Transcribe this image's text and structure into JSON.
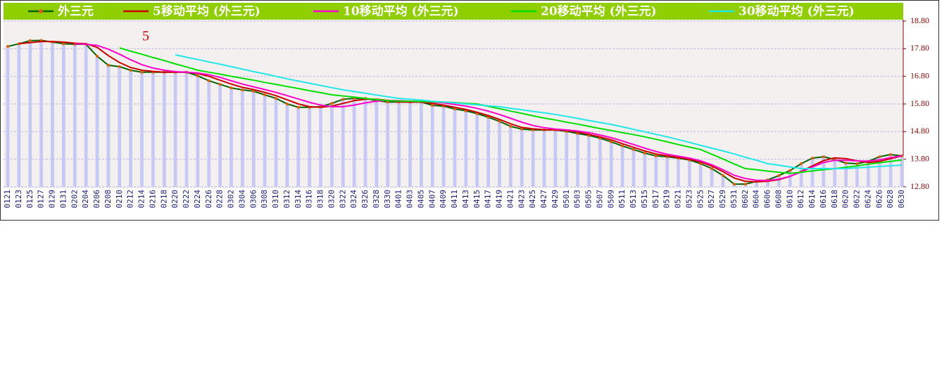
{
  "chart_data": {
    "type": "line",
    "annotation": "5",
    "categories": [
      "0121",
      "0123",
      "0125",
      "0127",
      "0129",
      "0131",
      "0202",
      "0204",
      "0206",
      "0208",
      "0210",
      "0212",
      "0214",
      "0216",
      "0218",
      "0220",
      "0222",
      "0224",
      "0226",
      "0228",
      "0302",
      "0304",
      "0306",
      "0308",
      "0310",
      "0312",
      "0314",
      "0316",
      "0318",
      "0320",
      "0322",
      "0324",
      "0326",
      "0328",
      "0330",
      "0401",
      "0403",
      "0405",
      "0407",
      "0409",
      "0411",
      "0413",
      "0415",
      "0417",
      "0419",
      "0421",
      "0423",
      "0425",
      "0427",
      "0429",
      "0501",
      "0503",
      "0505",
      "0507",
      "0509",
      "0511",
      "0513",
      "0515",
      "0517",
      "0519",
      "0521",
      "0523",
      "0525",
      "0527",
      "0529",
      "0531",
      "0602",
      "0604",
      "0606",
      "0608",
      "0610",
      "0612",
      "0614",
      "0616",
      "0618",
      "0620",
      "0622",
      "0624",
      "0626",
      "0628",
      "0630"
    ],
    "series": [
      {
        "name": "外三元",
        "color": "#006400",
        "values": [
          17.88,
          17.98,
          18.09,
          18.1,
          18.04,
          17.98,
          17.96,
          17.96,
          17.53,
          17.2,
          17.15,
          17.02,
          16.95,
          16.95,
          16.95,
          16.95,
          16.95,
          16.82,
          16.64,
          16.51,
          16.38,
          16.31,
          16.26,
          16.13,
          16.0,
          15.8,
          15.68,
          15.68,
          15.7,
          15.82,
          15.97,
          16.0,
          16.0,
          15.92,
          15.87,
          15.87,
          15.87,
          15.87,
          15.75,
          15.72,
          15.62,
          15.55,
          15.45,
          15.32,
          15.17,
          14.99,
          14.89,
          14.86,
          14.86,
          14.86,
          14.81,
          14.73,
          14.66,
          14.56,
          14.43,
          14.28,
          14.15,
          14.02,
          13.92,
          13.89,
          13.84,
          13.77,
          13.64,
          13.46,
          13.21,
          12.9,
          12.9,
          13.0,
          13.05,
          13.21,
          13.39,
          13.64,
          13.84,
          13.89,
          13.79,
          13.66,
          13.64,
          13.72,
          13.89,
          13.97,
          13.92
        ]
      },
      {
        "name": "5移动平均 (外三元)",
        "color": "#cc0000",
        "values": [
          null,
          17.98,
          18.02,
          18.06,
          18.06,
          18.04,
          18.0,
          17.98,
          17.85,
          17.55,
          17.3,
          17.12,
          17.02,
          16.98,
          16.95,
          16.95,
          16.95,
          16.9,
          16.8,
          16.66,
          16.52,
          16.4,
          16.32,
          16.22,
          16.1,
          15.95,
          15.8,
          15.7,
          15.68,
          15.72,
          15.82,
          15.92,
          15.97,
          15.97,
          15.93,
          15.88,
          15.87,
          15.87,
          15.82,
          15.76,
          15.68,
          15.6,
          15.5,
          15.38,
          15.24,
          15.08,
          14.95,
          14.9,
          14.87,
          14.86,
          14.84,
          14.78,
          14.7,
          14.61,
          14.5,
          14.36,
          14.23,
          14.1,
          13.99,
          13.92,
          13.86,
          13.8,
          13.7,
          13.55,
          13.35,
          13.12,
          13.0,
          12.98,
          13.0,
          13.06,
          13.18,
          13.36,
          13.56,
          13.75,
          13.85,
          13.82,
          13.74,
          13.68,
          13.72,
          13.82,
          13.92
        ]
      },
      {
        "name": "10移动平均 (外三元)",
        "color": "#ff00cc",
        "values": [
          null,
          null,
          null,
          null,
          null,
          null,
          17.98,
          17.96,
          17.92,
          17.78,
          17.6,
          17.4,
          17.22,
          17.1,
          17.02,
          16.97,
          16.95,
          16.92,
          16.86,
          16.76,
          16.64,
          16.52,
          16.42,
          16.32,
          16.22,
          16.1,
          15.98,
          15.86,
          15.76,
          15.7,
          15.7,
          15.76,
          15.84,
          15.9,
          15.93,
          15.92,
          15.9,
          15.89,
          15.87,
          15.84,
          15.78,
          15.72,
          15.64,
          15.54,
          15.42,
          15.28,
          15.14,
          15.02,
          14.94,
          14.89,
          14.86,
          14.82,
          14.76,
          14.68,
          14.58,
          14.46,
          14.33,
          14.2,
          14.08,
          13.98,
          13.91,
          13.84,
          13.74,
          13.6,
          13.42,
          13.22,
          13.1,
          13.04,
          13.03,
          13.08,
          13.18,
          13.34,
          13.52,
          13.68,
          13.76,
          13.76,
          13.74,
          13.73,
          13.78,
          13.86,
          13.92
        ]
      },
      {
        "name": "20移动平均 (外三元)",
        "color": "#00e000",
        "values": [
          null,
          null,
          null,
          null,
          null,
          null,
          null,
          null,
          null,
          null,
          17.83,
          17.71,
          17.6,
          17.48,
          17.37,
          17.25,
          17.14,
          17.02,
          16.95,
          16.88,
          16.8,
          16.73,
          16.66,
          16.58,
          16.51,
          16.43,
          16.36,
          16.28,
          16.21,
          16.13,
          16.09,
          16.05,
          16.0,
          15.96,
          15.92,
          15.91,
          15.9,
          15.89,
          15.88,
          15.87,
          15.85,
          15.82,
          15.8,
          15.71,
          15.63,
          15.54,
          15.46,
          15.37,
          15.29,
          15.22,
          15.14,
          15.07,
          14.99,
          14.91,
          14.84,
          14.76,
          14.69,
          14.61,
          14.52,
          14.43,
          14.33,
          14.24,
          14.15,
          13.98,
          13.81,
          13.63,
          13.46,
          13.42,
          13.37,
          13.33,
          13.29,
          13.33,
          13.38,
          13.42,
          13.46,
          13.51,
          13.56,
          13.62,
          13.67,
          13.72,
          13.77
        ]
      },
      {
        "name": "30移动平均 (外三元)",
        "color": "#22e8e8",
        "values": [
          null,
          null,
          null,
          null,
          null,
          null,
          null,
          null,
          null,
          null,
          null,
          null,
          null,
          null,
          null,
          17.58,
          17.49,
          17.41,
          17.32,
          17.24,
          17.15,
          17.06,
          16.97,
          16.89,
          16.8,
          16.71,
          16.63,
          16.55,
          16.47,
          16.39,
          16.31,
          16.25,
          16.19,
          16.12,
          16.06,
          16.0,
          15.97,
          15.94,
          15.9,
          15.87,
          15.84,
          15.8,
          15.77,
          15.73,
          15.7,
          15.64,
          15.59,
          15.53,
          15.48,
          15.42,
          15.35,
          15.28,
          15.2,
          15.13,
          15.06,
          14.97,
          14.88,
          14.79,
          14.7,
          14.61,
          14.51,
          14.41,
          14.3,
          14.2,
          14.1,
          13.99,
          13.87,
          13.76,
          13.64,
          13.58,
          13.52,
          13.46,
          13.46,
          13.46,
          13.46,
          13.46,
          13.49,
          13.51,
          13.54,
          13.56,
          13.59
        ]
      }
    ],
    "bar_color": "#c8c8f4",
    "ylim": [
      12.8,
      18.8
    ],
    "yticks": [
      {
        "value": 12.8,
        "label": "12.80"
      },
      {
        "value": 13.8,
        "label": "13.80"
      },
      {
        "value": 14.8,
        "label": "14.80"
      },
      {
        "value": 15.8,
        "label": "15.80"
      },
      {
        "value": 16.8,
        "label": "16.80"
      },
      {
        "value": 17.8,
        "label": "17.80"
      },
      {
        "value": 18.8,
        "label": "18.80"
      }
    ],
    "grid": true
  }
}
